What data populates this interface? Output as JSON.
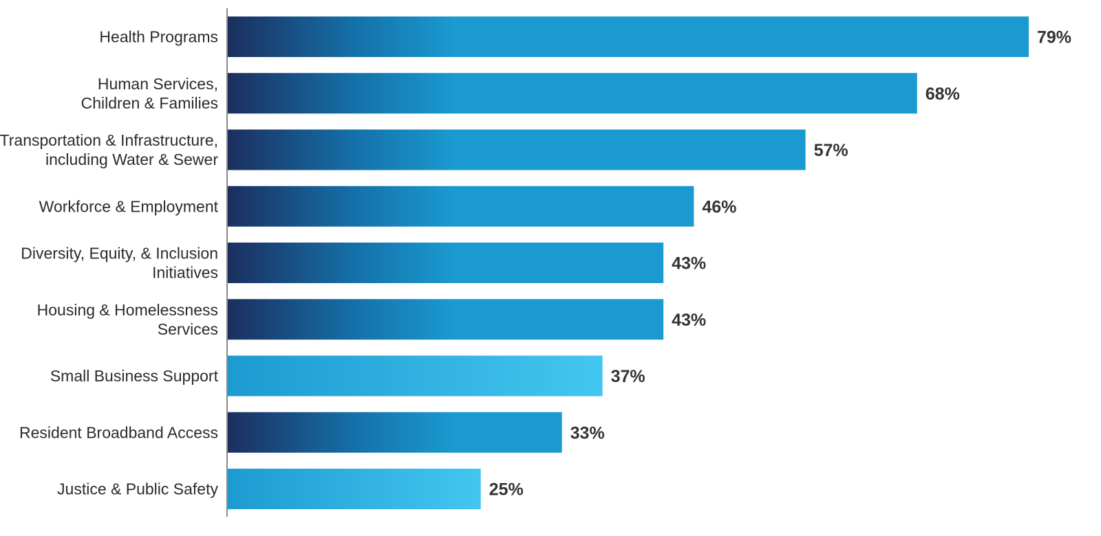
{
  "chart_data": {
    "type": "bar",
    "orientation": "horizontal",
    "categories": [
      [
        "Health Programs"
      ],
      [
        "Human Services,",
        "Children & Families"
      ],
      [
        "Transportation & Infrastructure,",
        "including Water & Sewer"
      ],
      [
        "Workforce & Employment"
      ],
      [
        "Diversity, Equity, & Inclusion",
        "Initiatives"
      ],
      [
        "Housing & Homelessness",
        "Services"
      ],
      [
        "Small Business Support"
      ],
      [
        "Resident Broadband Access"
      ],
      [
        "Justice & Public Safety"
      ]
    ],
    "values": [
      79,
      68,
      57,
      46,
      43,
      43,
      37,
      33,
      25
    ],
    "value_labels": [
      "79%",
      "68%",
      "57%",
      "46%",
      "43%",
      "43%",
      "37%",
      "33%",
      "25%"
    ],
    "bar_style": [
      "dark",
      "dark",
      "dark",
      "dark",
      "dark",
      "dark",
      "light",
      "dark",
      "light"
    ],
    "xlim": [
      0,
      79
    ],
    "title": "",
    "xlabel": "",
    "ylabel": "",
    "grid": false,
    "legend": "none",
    "colors": {
      "dark_start": "#1b2f5e",
      "dark_mid": "#156fa8",
      "dark_end": "#1a9ad0",
      "light_start": "#1d9bd1",
      "light_end": "#43c6f0",
      "axis": "#8a8a8a",
      "label_text": "#2b2b2b",
      "value_text": "#333333"
    }
  }
}
